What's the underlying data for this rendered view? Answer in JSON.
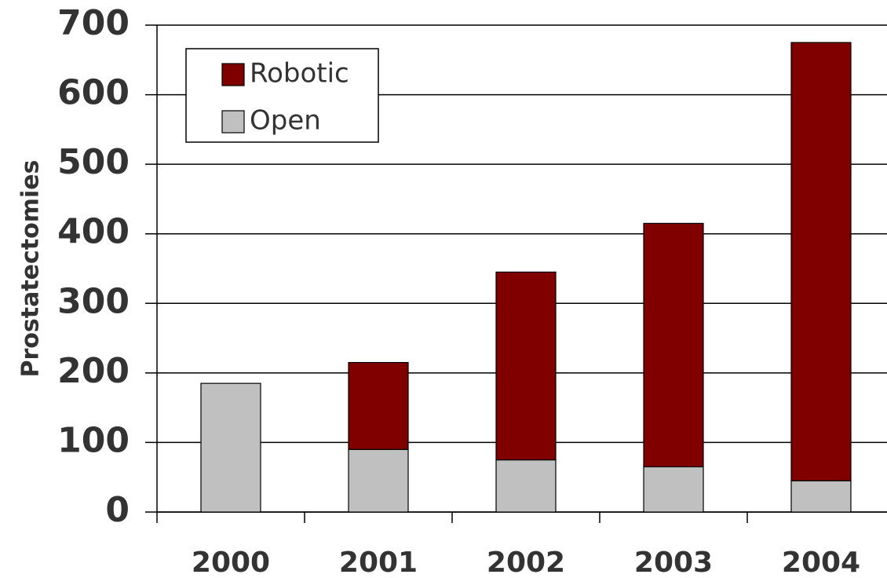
{
  "chart_data": {
    "type": "stacked_bar",
    "y_label": "Prostatectomies",
    "categories": [
      "2000",
      "2001",
      "2002",
      "2003",
      "2004"
    ],
    "series": [
      {
        "name": "Open",
        "color": "#c0c0c0",
        "values": [
          185,
          90,
          75,
          65,
          45
        ]
      },
      {
        "name": "Robotic",
        "color": "#800000",
        "values": [
          0,
          125,
          270,
          350,
          630
        ]
      }
    ],
    "ylim": [
      0,
      700
    ],
    "yticks": [
      0,
      100,
      200,
      300,
      400,
      500,
      600,
      700
    ],
    "grid": true,
    "legend": "upper left"
  }
}
